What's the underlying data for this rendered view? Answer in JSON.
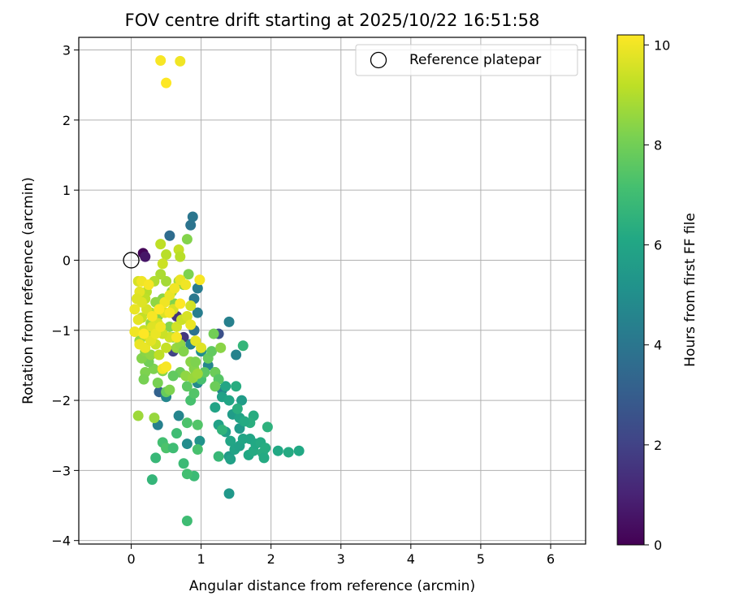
{
  "chart_data": {
    "type": "scatter",
    "title": "FOV centre drift starting at 2025/10/22 16:51:58",
    "xlabel": "Angular distance from reference (arcmin)",
    "ylabel": "Rotation from reference (arcmin)",
    "xlim": [
      -0.75,
      6.5
    ],
    "ylim": [
      -4.05,
      3.18
    ],
    "xticks": [
      0,
      1,
      2,
      3,
      4,
      5,
      6
    ],
    "yticks": [
      -4,
      -3,
      -2,
      -1,
      0,
      1,
      2,
      3
    ],
    "grid": true,
    "legend": {
      "location": "top-right",
      "entries": [
        "Reference platepar"
      ]
    },
    "reference_point": {
      "label": "Reference platepar",
      "x": 0,
      "y": 0
    },
    "colorbar": {
      "label": "Hours from first FF file",
      "range": [
        0,
        10.2
      ],
      "ticks": [
        0,
        2,
        4,
        6,
        8,
        10
      ],
      "colormap": "viridis",
      "colors": [
        "#440154",
        "#482475",
        "#414487",
        "#355f8d",
        "#2a788e",
        "#21918c",
        "#22a884",
        "#44bf70",
        "#7ad151",
        "#bddf26",
        "#fde725"
      ]
    },
    "points": [
      [
        0.17,
        0.1,
        0.1
      ],
      [
        0.2,
        0.05,
        0.6
      ],
      [
        0.65,
        -0.8,
        1.5
      ],
      [
        0.9,
        -1.0,
        1.8
      ],
      [
        0.6,
        -1.3,
        2.0
      ],
      [
        0.75,
        -1.1,
        1.6
      ],
      [
        1.25,
        -1.05,
        2.5
      ],
      [
        0.55,
        0.35,
        3.6
      ],
      [
        0.85,
        0.5,
        3.9
      ],
      [
        0.88,
        0.62,
        4.0
      ],
      [
        0.95,
        -0.4,
        4.2
      ],
      [
        0.9,
        -0.55,
        4.1
      ],
      [
        0.95,
        -0.75,
        4.3
      ],
      [
        0.9,
        -1.0,
        3.8
      ],
      [
        0.4,
        -1.88,
        3.2
      ],
      [
        1.4,
        -0.88,
        4.4
      ],
      [
        1.5,
        -1.35,
        4.5
      ],
      [
        0.85,
        -1.2,
        4.5
      ],
      [
        1.1,
        -1.5,
        4.6
      ],
      [
        0.95,
        -1.75,
        4.8
      ],
      [
        0.8,
        -2.62,
        4.9
      ],
      [
        0.38,
        -2.35,
        4.4
      ],
      [
        0.68,
        -2.22,
        4.6
      ],
      [
        1.3,
        -1.85,
        4.5
      ],
      [
        0.5,
        -1.95,
        4.7
      ],
      [
        0.98,
        -2.58,
        5.2
      ],
      [
        1.0,
        -1.3,
        5.0
      ],
      [
        1.2,
        -1.6,
        5.3
      ],
      [
        1.4,
        -3.33,
        5.4
      ],
      [
        1.4,
        -2.8,
        5.5
      ],
      [
        1.55,
        -2.4,
        5.5
      ],
      [
        1.58,
        -2.0,
        5.6
      ],
      [
        1.6,
        -1.22,
        6.7
      ],
      [
        1.35,
        -1.8,
        6.0
      ],
      [
        1.3,
        -1.95,
        5.8
      ],
      [
        1.45,
        -2.2,
        5.6
      ],
      [
        1.2,
        -2.1,
        5.9
      ],
      [
        1.25,
        -2.35,
        5.8
      ],
      [
        1.35,
        -2.45,
        5.7
      ],
      [
        1.42,
        -2.58,
        6.0
      ],
      [
        1.48,
        -2.7,
        5.9
      ],
      [
        1.55,
        -2.65,
        5.8
      ],
      [
        1.6,
        -2.55,
        6.0
      ],
      [
        1.68,
        -2.78,
        6.1
      ],
      [
        1.7,
        -2.55,
        6.0
      ],
      [
        1.75,
        -2.72,
        6.2
      ],
      [
        1.78,
        -2.62,
        6.1
      ],
      [
        1.85,
        -2.6,
        6.2
      ],
      [
        1.88,
        -2.75,
        6.3
      ],
      [
        1.9,
        -2.82,
        6.2
      ],
      [
        1.92,
        -2.68,
        6.3
      ],
      [
        1.95,
        -2.38,
        6.5
      ],
      [
        2.1,
        -2.72,
        6.1
      ],
      [
        2.25,
        -2.74,
        6.2
      ],
      [
        2.4,
        -2.72,
        6.1
      ],
      [
        1.42,
        -2.84,
        5.8
      ],
      [
        1.55,
        -2.25,
        5.9
      ],
      [
        1.75,
        -2.22,
        6.3
      ],
      [
        1.7,
        -2.32,
        6.4
      ],
      [
        1.62,
        -2.3,
        6.2
      ],
      [
        1.52,
        -2.12,
        6.4
      ],
      [
        1.4,
        -2.0,
        6.0
      ],
      [
        1.5,
        -1.8,
        6.3
      ],
      [
        1.3,
        -2.42,
        6.6
      ],
      [
        1.25,
        -2.8,
        6.8
      ],
      [
        0.8,
        -3.72,
        7.0
      ],
      [
        0.9,
        -3.08,
        6.9
      ],
      [
        0.8,
        -3.05,
        7.1
      ],
      [
        0.75,
        -2.9,
        6.9
      ],
      [
        0.95,
        -2.7,
        7.2
      ],
      [
        0.45,
        -2.6,
        7.1
      ],
      [
        0.5,
        -2.68,
        7.3
      ],
      [
        0.6,
        -2.68,
        7.0
      ],
      [
        0.65,
        -2.47,
        7.0
      ],
      [
        0.95,
        -2.35,
        7.4
      ],
      [
        0.8,
        -2.32,
        7.3
      ],
      [
        0.35,
        -2.82,
        6.8
      ],
      [
        0.3,
        -3.13,
        6.7
      ],
      [
        0.85,
        -2.0,
        7.2
      ],
      [
        0.9,
        -1.9,
        7.4
      ],
      [
        0.8,
        -1.8,
        7.6
      ],
      [
        1.0,
        -1.7,
        7.2
      ],
      [
        1.05,
        -1.6,
        7.6
      ],
      [
        1.1,
        -1.4,
        7.8
      ],
      [
        1.15,
        -1.3,
        7.7
      ],
      [
        1.18,
        -1.05,
        8.0
      ],
      [
        1.2,
        -1.6,
        7.9
      ],
      [
        1.25,
        -1.7,
        7.5
      ],
      [
        1.2,
        -1.8,
        7.9
      ],
      [
        1.28,
        -1.25,
        8.4
      ],
      [
        0.7,
        -1.6,
        7.9
      ],
      [
        0.6,
        -1.65,
        7.7
      ],
      [
        0.5,
        -1.88,
        7.8
      ],
      [
        0.55,
        -1.85,
        8.2
      ],
      [
        0.45,
        -1.58,
        8.3
      ],
      [
        0.38,
        -1.75,
        8.1
      ],
      [
        0.32,
        -1.55,
        8.2
      ],
      [
        0.25,
        -1.45,
        8.0
      ],
      [
        0.2,
        -1.6,
        8.2
      ],
      [
        0.18,
        -1.7,
        8.1
      ],
      [
        0.15,
        -1.4,
        8.3
      ],
      [
        0.12,
        -1.15,
        8.6
      ],
      [
        0.2,
        -1.3,
        8.4
      ],
      [
        0.28,
        -1.35,
        8.5
      ],
      [
        0.1,
        -2.22,
        8.7
      ],
      [
        0.33,
        -2.25,
        8.6
      ],
      [
        0.8,
        0.3,
        8.3
      ],
      [
        0.82,
        -0.2,
        8.2
      ],
      [
        0.75,
        -0.35,
        8.4
      ],
      [
        0.62,
        -0.62,
        8.3
      ],
      [
        0.45,
        -0.55,
        8.4
      ],
      [
        0.35,
        -0.6,
        8.5
      ],
      [
        0.38,
        -0.8,
        8.4
      ],
      [
        0.28,
        -0.9,
        8.6
      ],
      [
        0.3,
        -1.05,
        8.5
      ],
      [
        0.55,
        -0.95,
        8.3
      ],
      [
        0.6,
        -1.1,
        8.4
      ],
      [
        0.65,
        -1.25,
        8.6
      ],
      [
        0.7,
        -1.2,
        8.5
      ],
      [
        0.75,
        -1.3,
        8.3
      ],
      [
        0.85,
        -1.45,
        8.4
      ],
      [
        0.9,
        -1.55,
        8.3
      ],
      [
        0.78,
        -1.65,
        8.5
      ],
      [
        0.88,
        -1.68,
        8.6
      ],
      [
        0.95,
        -1.62,
        8.7
      ],
      [
        0.92,
        -1.45,
        8.2
      ],
      [
        0.58,
        -0.45,
        8.6
      ],
      [
        0.68,
        -0.3,
        8.7
      ],
      [
        0.5,
        -0.3,
        8.8
      ],
      [
        0.42,
        -0.2,
        8.9
      ],
      [
        0.33,
        -0.3,
        9.0
      ],
      [
        0.22,
        -0.45,
        9.1
      ],
      [
        0.28,
        -0.75,
        9.0
      ],
      [
        0.42,
        0.23,
        9.2
      ],
      [
        0.5,
        0.08,
        9.1
      ],
      [
        0.68,
        0.15,
        9.3
      ],
      [
        0.7,
        0.05,
        9.1
      ],
      [
        0.45,
        -0.05,
        9.4
      ],
      [
        0.2,
        -0.55,
        9.2
      ],
      [
        0.15,
        -0.82,
        9.3
      ],
      [
        0.18,
        -1.0,
        9.4
      ],
      [
        0.25,
        -1.1,
        9.3
      ],
      [
        0.35,
        -1.2,
        9.4
      ],
      [
        0.4,
        -1.35,
        9.2
      ],
      [
        0.5,
        -1.25,
        9.3
      ],
      [
        0.55,
        -1.1,
        9.5
      ],
      [
        0.45,
        -1.05,
        9.4
      ],
      [
        0.65,
        -0.95,
        9.5
      ],
      [
        0.72,
        -0.85,
        9.4
      ],
      [
        0.8,
        -0.8,
        9.6
      ],
      [
        0.85,
        -0.65,
        9.5
      ],
      [
        0.6,
        -0.7,
        9.6
      ],
      [
        0.48,
        -0.75,
        9.7
      ],
      [
        0.38,
        -0.9,
        9.6
      ],
      [
        0.3,
        -0.95,
        9.7
      ],
      [
        0.22,
        -0.7,
        9.6
      ],
      [
        0.15,
        -0.6,
        9.7
      ],
      [
        0.12,
        -0.45,
        9.8
      ],
      [
        0.1,
        -0.3,
        9.6
      ],
      [
        0.08,
        -0.55,
        9.7
      ],
      [
        0.05,
        -0.7,
        9.9
      ],
      [
        0.1,
        -0.85,
        9.8
      ],
      [
        0.05,
        -1.02,
        10.0
      ],
      [
        0.12,
        -1.2,
        9.9
      ],
      [
        0.2,
        -1.25,
        9.9
      ],
      [
        0.28,
        -1.15,
        9.8
      ],
      [
        0.35,
        -1.05,
        9.9
      ],
      [
        0.42,
        -0.95,
        10.0
      ],
      [
        0.48,
        -0.6,
        10.0
      ],
      [
        0.55,
        -0.5,
        9.9
      ],
      [
        0.62,
        -0.4,
        10.0
      ],
      [
        0.7,
        -0.28,
        9.9
      ],
      [
        0.78,
        -0.35,
        10.0
      ],
      [
        0.98,
        -0.28,
        10.1
      ],
      [
        0.92,
        -1.15,
        9.8
      ],
      [
        1.0,
        -1.25,
        9.7
      ],
      [
        0.45,
        -1.55,
        10.0
      ],
      [
        0.5,
        -1.52,
        10.1
      ],
      [
        0.85,
        -0.92,
        9.9
      ],
      [
        0.65,
        -1.1,
        10.1
      ],
      [
        0.15,
        -0.3,
        10.0
      ],
      [
        0.25,
        -0.35,
        10.1
      ],
      [
        0.55,
        -0.75,
        10.1
      ],
      [
        0.7,
        -0.62,
        10.2
      ],
      [
        0.4,
        -0.7,
        10.2
      ],
      [
        0.3,
        -0.8,
        10.1
      ],
      [
        0.18,
        -1.05,
        10.2
      ],
      [
        0.42,
        2.85,
        10.1
      ],
      [
        0.7,
        2.84,
        10.0
      ],
      [
        0.5,
        2.53,
        10.2
      ]
    ]
  }
}
